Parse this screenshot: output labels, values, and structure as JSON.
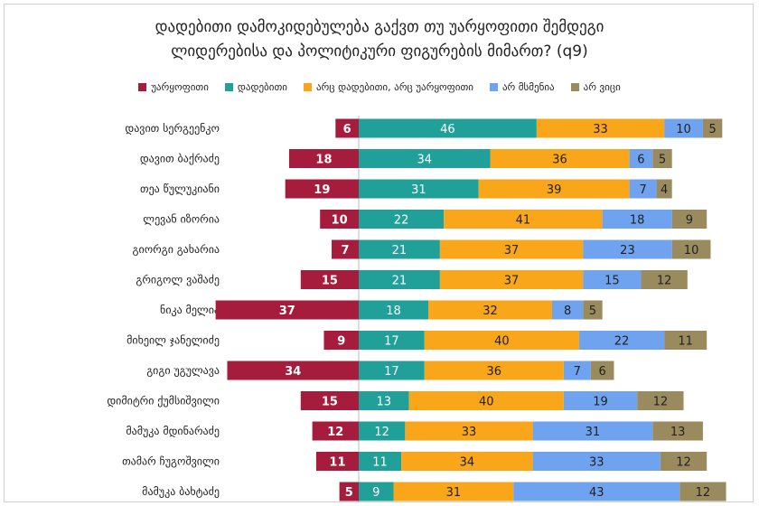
{
  "chart_data": {
    "type": "bar",
    "orientation": "horizontal-diverging-stacked",
    "title_line1": "დადებითი დამოკიდებულება გაქვთ თუ უარყოფითი შემდეგი",
    "title_line2": "ლიდერებისა და პოლიტიკური ფიგურების მიმართ? (q9)",
    "categories": [
      "დავით სერგეენკო",
      "დავით ბაქრაძე",
      "თეა წულუკიანი",
      "ლევან იზორია",
      "გიორგი გახარია",
      "გრიგოლ ვაშაძე",
      "ნიკა მელია",
      "მიხეილ ჯანელიძე",
      "გიგი უგულავა",
      "დიმიტრი ქუმსიშვილი",
      "მამუკა მდინარაძე",
      "თამარ ჩუგოშვილი",
      "მამუკა ბახტაძე"
    ],
    "series": [
      {
        "name": "უარყოფითი",
        "color": "#a61c3c",
        "values": [
          6,
          18,
          19,
          10,
          7,
          15,
          37,
          9,
          34,
          15,
          12,
          11,
          5
        ]
      },
      {
        "name": "დადებითი",
        "color": "#21a09a",
        "values": [
          46,
          34,
          31,
          22,
          21,
          21,
          18,
          17,
          17,
          13,
          12,
          11,
          9
        ]
      },
      {
        "name": "არც დადებითი, არც უარყოფითი",
        "color": "#f9a61a",
        "values": [
          33,
          36,
          39,
          41,
          37,
          37,
          32,
          40,
          36,
          40,
          33,
          34,
          31
        ]
      },
      {
        "name": "არ მსმენია",
        "color": "#6fa3ef",
        "values": [
          10,
          6,
          7,
          18,
          23,
          15,
          8,
          22,
          7,
          19,
          31,
          33,
          43
        ]
      },
      {
        "name": "არ ვიცი",
        "color": "#9a8b5e",
        "values": [
          5,
          5,
          4,
          9,
          10,
          12,
          5,
          11,
          6,
          12,
          13,
          12,
          12
        ]
      }
    ]
  }
}
